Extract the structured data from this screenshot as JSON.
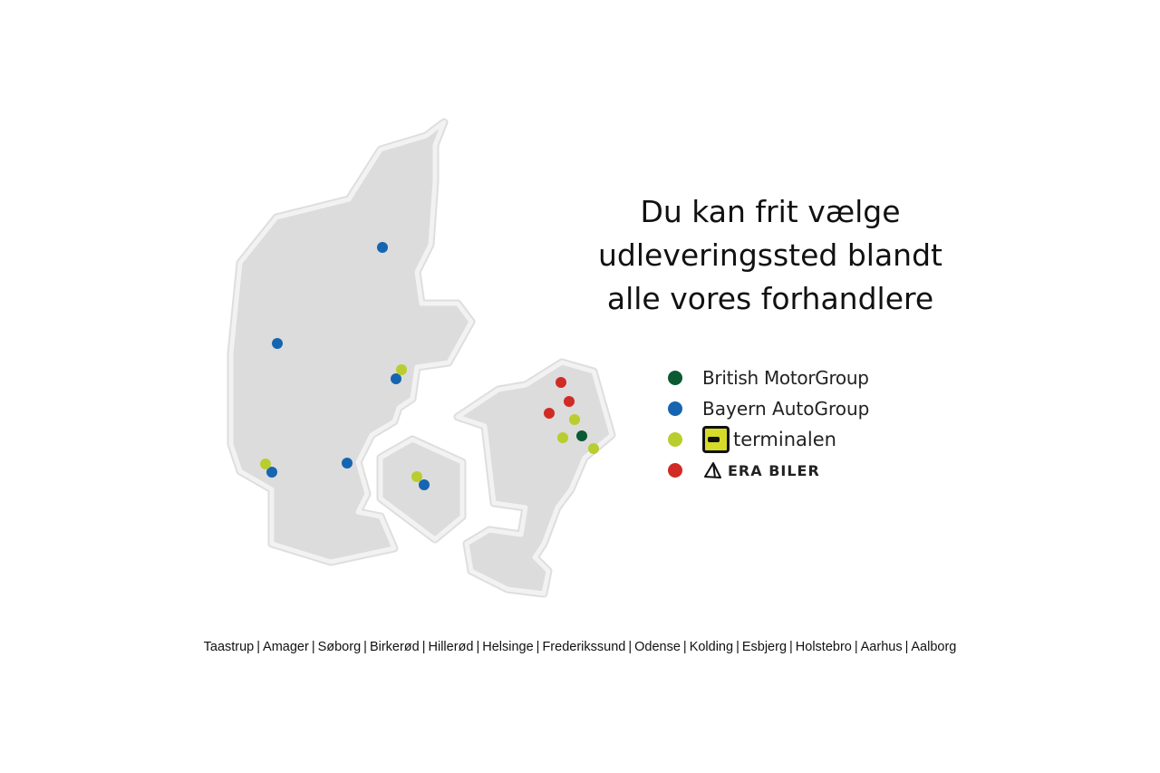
{
  "headline": {
    "line1": "Du kan frit vælge",
    "line2": "udleveringssted blandt",
    "line3": "alle vores forhandlere"
  },
  "legend": [
    {
      "label": "British MotorGroup",
      "color": "#0b5a33"
    },
    {
      "label": "Bayern AutoGroup",
      "color": "#1565b0"
    },
    {
      "label": "terminalen",
      "color": "#b9cd2f",
      "logo_icon": "terminalen-logo"
    },
    {
      "label": "ERA BILER",
      "color": "#d12b26",
      "logo_icon": "era-triangle-logo"
    }
  ],
  "map": {
    "regions": [
      "Jylland",
      "Fyn",
      "Sjælland"
    ],
    "land_color": "#dcdcdc"
  },
  "cities": [
    "Taastrup",
    "Amager",
    "Søborg",
    "Birkerød",
    "Hillerød",
    "Helsinge",
    "Frederikssund",
    "Odense",
    "Kolding",
    "Esbjerg",
    "Holstebro",
    "Aarhus",
    "Aalborg"
  ],
  "separator": "|"
}
